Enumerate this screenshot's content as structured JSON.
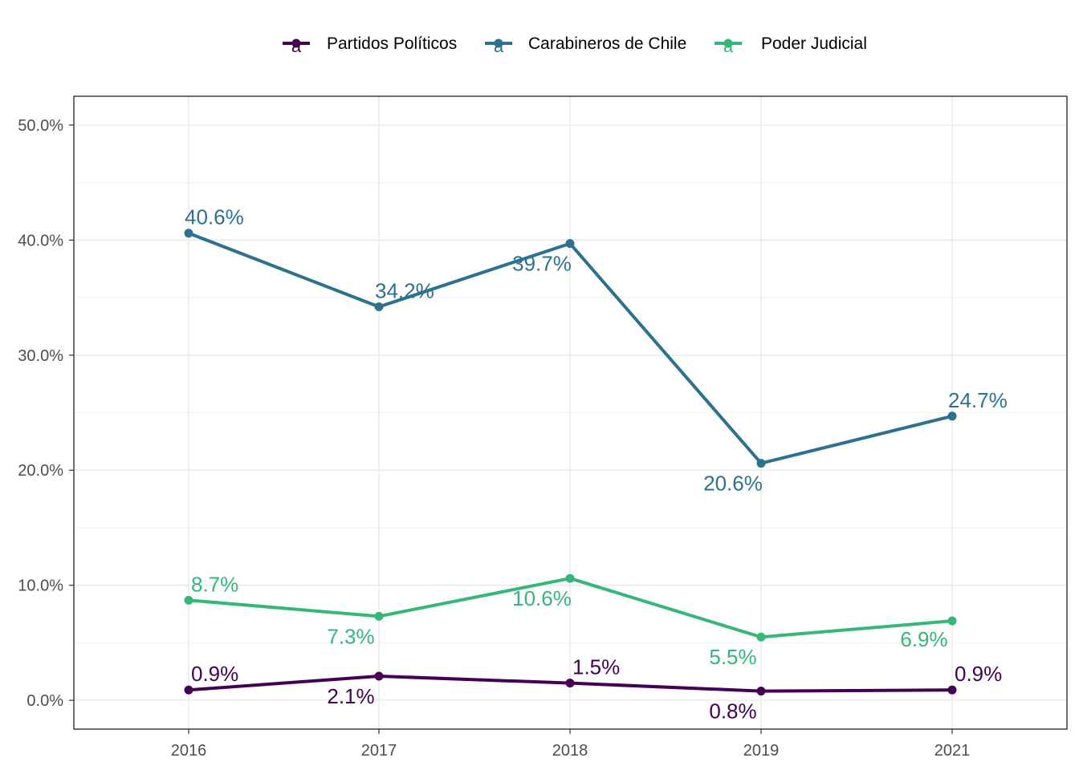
{
  "chart_data": {
    "type": "line",
    "x": [
      "2016",
      "2017",
      "2018",
      "2019",
      "2021"
    ],
    "series": [
      {
        "name": "Partidos Políticos",
        "color": "#440154",
        "values": [
          0.9,
          2.1,
          1.5,
          0.8,
          0.9
        ],
        "labels": [
          "0.9%",
          "2.1%",
          "1.5%",
          "0.8%",
          "0.9%"
        ]
      },
      {
        "name": "Carabineros de Chile",
        "color": "#2C728E",
        "values": [
          40.6,
          34.2,
          39.7,
          20.6,
          24.7
        ],
        "labels": [
          "40.6%",
          "34.2%",
          "39.7%",
          "20.6%",
          "24.7%"
        ]
      },
      {
        "name": "Poder Judicial",
        "color": "#35B779",
        "values": [
          8.7,
          7.3,
          10.6,
          5.5,
          6.9
        ],
        "labels": [
          "8.7%",
          "7.3%",
          "10.6%",
          "5.5%",
          "6.9%"
        ]
      }
    ],
    "y_ticks": [
      0,
      10,
      20,
      30,
      40,
      50
    ],
    "y_tick_labels": [
      "0.0%",
      "10.0%",
      "20.0%",
      "30.0%",
      "40.0%",
      "50.0%"
    ],
    "ylim": [
      -2.5,
      52.5
    ],
    "legend_key_glyph": "a",
    "legend_position": "top",
    "grid": true,
    "title": "",
    "xlabel": "",
    "ylabel": ""
  }
}
